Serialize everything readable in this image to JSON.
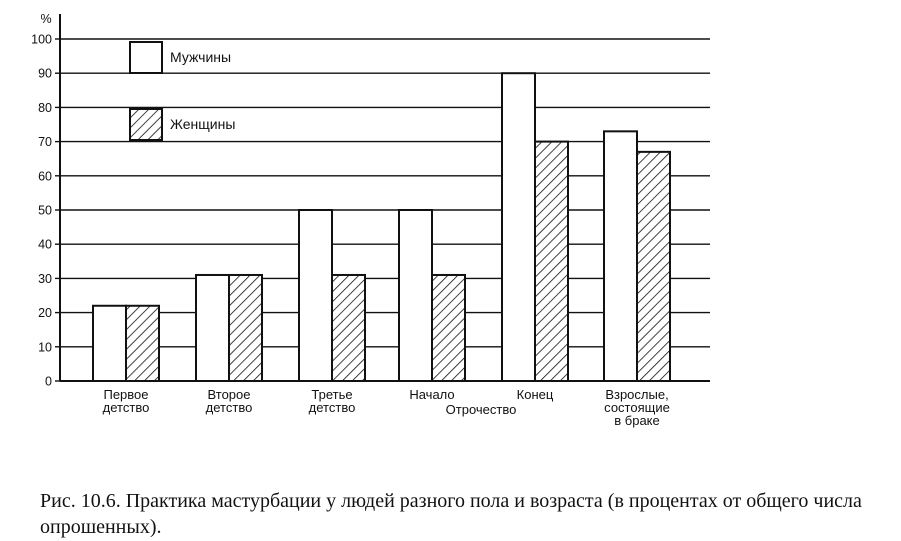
{
  "chart_data": {
    "type": "bar",
    "ylabel": "%",
    "ylim": [
      0,
      100
    ],
    "yticks": [
      0,
      10,
      20,
      30,
      40,
      50,
      60,
      70,
      80,
      90,
      100
    ],
    "grid": true,
    "legend_position": "top-left",
    "categories": [
      [
        "Первое",
        "детство"
      ],
      [
        "Второе",
        "детство"
      ],
      [
        "Третье",
        "детство"
      ],
      [
        "Начало"
      ],
      [
        "Конец"
      ],
      [
        "Взрослые,",
        "состоящие",
        "в браке"
      ]
    ],
    "group_label": "Отрочество",
    "series": [
      {
        "name": "Мужчины",
        "pattern": "white",
        "values": [
          22,
          31,
          50,
          50,
          90,
          73
        ]
      },
      {
        "name": "Женщины",
        "pattern": "hatched",
        "values": [
          22,
          31,
          31,
          31,
          70,
          67
        ]
      }
    ]
  },
  "caption": "Рис. 10.6. Практика мастурбации у людей разного пола и возраста (в процентах от общего числа опрошенных).",
  "colors": {
    "ink": "#111111",
    "paper": "#ffffff"
  }
}
